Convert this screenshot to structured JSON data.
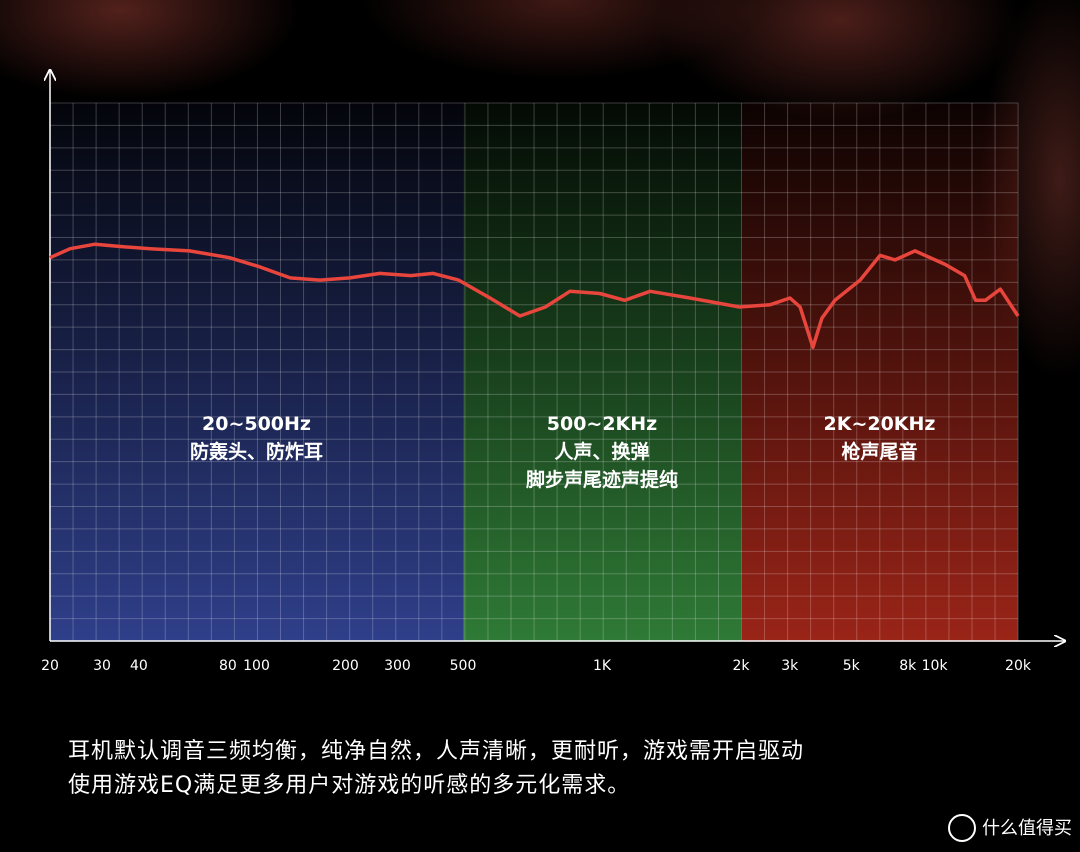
{
  "chart_data": {
    "type": "line",
    "xscale": "log",
    "x": [
      20,
      23.4,
      28.4,
      34.6,
      43.6,
      59.3,
      81,
      102,
      130,
      164,
      207,
      262,
      333,
      396,
      483,
      572,
      664,
      754,
      852,
      989,
      1120,
      1271,
      1550,
      1985,
      2546,
      3005,
      3269,
      3636,
      3917,
      4366,
      5382,
      6355,
      7202,
      8496,
      10908,
      12828,
      14060,
      15248,
      17270,
      20000
    ],
    "values": [
      17.1,
      17.5,
      17.7,
      17.6,
      17.5,
      17.4,
      17.1,
      16.7,
      16.2,
      16.1,
      16.2,
      16.4,
      16.3,
      16.4,
      16.1,
      15.3,
      14.5,
      14.9,
      15.6,
      15.5,
      15.2,
      15.6,
      15.3,
      14.9,
      15.0,
      15.3,
      14.9,
      13.1,
      14.4,
      15.2,
      16.1,
      17.2,
      17.0,
      17.4,
      16.8,
      16.3,
      15.2,
      15.2,
      15.7,
      14.5
    ],
    "color": "#e8453c",
    "xlim": [
      20,
      20000
    ],
    "xticks": [
      20,
      30,
      40,
      80,
      100,
      200,
      300,
      500,
      {
        "value": 1000,
        "label": "1K"
      },
      {
        "value": 2000,
        "label": "2k"
      },
      {
        "value": 3000,
        "label": "3k"
      },
      {
        "value": 5000,
        "label": "5k"
      },
      {
        "value": 8000,
        "label": "8k"
      },
      {
        "value": 10000,
        "label": "10k"
      },
      {
        "value": 20000,
        "label": "20k"
      }
    ],
    "ylim": [
      0,
      24
    ],
    "bands": [
      {
        "range": [
          20,
          500
        ],
        "labels": [
          "20~500Hz",
          "防轰头、防炸耳"
        ],
        "color": "#2f3f8a"
      },
      {
        "range": [
          500,
          2000
        ],
        "labels": [
          "500~2KHz",
          "人声、换弹",
          "脚步声尾迹声提纯"
        ],
        "color": "#2f7a36"
      },
      {
        "range": [
          2000,
          20000
        ],
        "labels": [
          "2K~20KHz",
          "枪声尾音"
        ],
        "color": "#9a2418"
      }
    ]
  },
  "caption": [
    "耳机默认调音三频均衡，纯净自然，人声清晰，更耐听，游戏需开启驱动",
    "使用游戏EQ满足更多用户对游戏的听感的多元化需求。"
  ],
  "watermark": "什么值得买"
}
